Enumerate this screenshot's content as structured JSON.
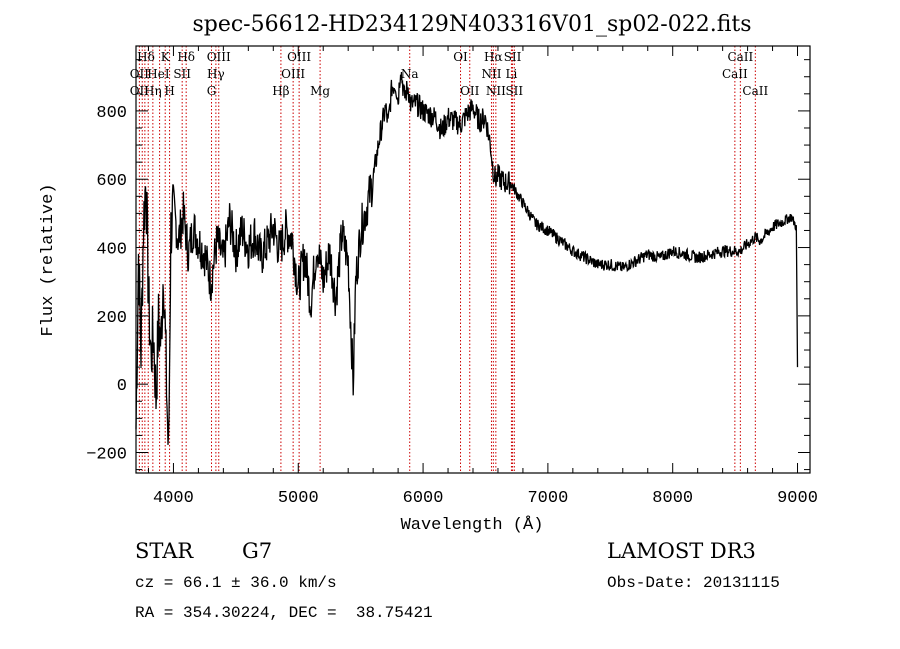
{
  "chart_data": {
    "type": "line",
    "title": "spec-56612-HD234129N403316V01_sp02-022.fits",
    "xlabel": "Wavelength (Å)",
    "ylabel": "Flux (relative)",
    "xlim": [
      3700,
      9100
    ],
    "ylim": [
      -260,
      990
    ],
    "xticks": [
      "4000",
      "5000",
      "6000",
      "7000",
      "8000",
      "9000"
    ],
    "yticks": [
      "−200",
      "0",
      "200",
      "400",
      "600",
      "800"
    ],
    "grid": false,
    "series": [
      {
        "x": [
          3700,
          3720,
          3740,
          3760,
          3780,
          3800,
          3820,
          3840,
          3860,
          3880,
          3900,
          3920,
          3940,
          3960,
          3980,
          4000,
          4040,
          4080,
          4120,
          4160,
          4200,
          4250,
          4300,
          4350,
          4400,
          4450,
          4500,
          4550,
          4600,
          4650,
          4700,
          4750,
          4800,
          4850,
          4900,
          4950,
          5000,
          5050,
          5100,
          5150,
          5200,
          5250,
          5300,
          5350,
          5400,
          5440,
          5460,
          5500,
          5550,
          5600,
          5650,
          5700,
          5720,
          5750,
          5780,
          5800,
          5820,
          5850,
          5880,
          5900,
          5950,
          6000,
          6050,
          6100,
          6150,
          6200,
          6250,
          6300,
          6350,
          6400,
          6450,
          6500,
          6540,
          6560,
          6580,
          6600,
          6650,
          6700,
          6750,
          6800,
          6900,
          7000,
          7100,
          7200,
          7300,
          7400,
          7500,
          7600,
          7700,
          7800,
          7900,
          8000,
          8100,
          8200,
          8300,
          8400,
          8500,
          8540,
          8600,
          8660,
          8700,
          8800,
          8900,
          8950,
          8990,
          9000
        ],
        "y": [
          -130,
          380,
          100,
          470,
          610,
          250,
          80,
          150,
          -40,
          180,
          120,
          350,
          60,
          -220,
          450,
          520,
          420,
          500,
          380,
          460,
          420,
          380,
          300,
          420,
          360,
          480,
          390,
          450,
          400,
          440,
          370,
          410,
          460,
          390,
          450,
          430,
          280,
          380,
          240,
          410,
          300,
          390,
          250,
          440,
          360,
          0,
          300,
          450,
          520,
          600,
          720,
          810,
          760,
          870,
          880,
          830,
          930,
          840,
          870,
          820,
          820,
          800,
          790,
          780,
          740,
          780,
          770,
          760,
          790,
          810,
          770,
          780,
          700,
          630,
          600,
          610,
          590,
          590,
          560,
          530,
          470,
          450,
          420,
          390,
          370,
          350,
          350,
          340,
          360,
          380,
          370,
          390,
          380,
          370,
          380,
          390,
          390,
          390,
          410,
          430,
          420,
          460,
          480,
          490,
          460,
          50
        ]
      }
    ],
    "line_labels": [
      {
        "text": "Hδ",
        "x": 3780,
        "row": 0
      },
      {
        "text": "K",
        "x": 3934,
        "row": 0
      },
      {
        "text": "Hδ",
        "x": 4102,
        "row": 0
      },
      {
        "text": "OIII",
        "x": 4363,
        "row": 0
      },
      {
        "text": "OIII",
        "x": 5007,
        "row": 0
      },
      {
        "text": "OI",
        "x": 6300,
        "row": 0
      },
      {
        "text": "Hα",
        "x": 6563,
        "row": 0
      },
      {
        "text": "SII",
        "x": 6717,
        "row": 0
      },
      {
        "text": "CaII",
        "x": 8542,
        "row": 0
      },
      {
        "text": "OII",
        "x": 3727,
        "row": 1
      },
      {
        "text": "HeI",
        "x": 3880,
        "row": 1
      },
      {
        "text": "SII",
        "x": 4070,
        "row": 1
      },
      {
        "text": "Hγ",
        "x": 4340,
        "row": 1
      },
      {
        "text": "OIII",
        "x": 4959,
        "row": 1
      },
      {
        "text": "Na",
        "x": 5893,
        "row": 1
      },
      {
        "text": "NII",
        "x": 6548,
        "row": 1
      },
      {
        "text": "Li",
        "x": 6708,
        "row": 1
      },
      {
        "text": "CaII",
        "x": 8498,
        "row": 1
      },
      {
        "text": "OII",
        "x": 3727,
        "row": 2
      },
      {
        "text": "Hη",
        "x": 3835,
        "row": 2
      },
      {
        "text": "H",
        "x": 3969,
        "row": 2
      },
      {
        "text": "G",
        "x": 4305,
        "row": 2
      },
      {
        "text": "Hβ",
        "x": 4861,
        "row": 2
      },
      {
        "text": "Mg",
        "x": 5175,
        "row": 2
      },
      {
        "text": "OII",
        "x": 6374,
        "row": 2
      },
      {
        "text": "NII",
        "x": 6583,
        "row": 2
      },
      {
        "text": "SII",
        "x": 6731,
        "row": 2
      },
      {
        "text": "CaII",
        "x": 8662,
        "row": 2
      }
    ],
    "marker_lines": [
      3727,
      3750,
      3771,
      3798,
      3835,
      3889,
      3934,
      3969,
      4070,
      4102,
      4305,
      4340,
      4363,
      4861,
      4959,
      5007,
      5175,
      5893,
      6300,
      6374,
      6548,
      6563,
      6583,
      6708,
      6717,
      6731,
      8498,
      8542,
      8662
    ],
    "colors": {
      "spectrum": "#000000",
      "marker": "#cc0000",
      "axes": "#000000"
    }
  },
  "info": {
    "object_class": "STAR",
    "subclass": "G7",
    "cz": "cz = 66.1 ± 36.0 km/s",
    "radec": "RA = 354.30224, DEC =  38.75421",
    "survey": "LAMOST DR3",
    "obs_date": "Obs-Date: 20131115"
  }
}
